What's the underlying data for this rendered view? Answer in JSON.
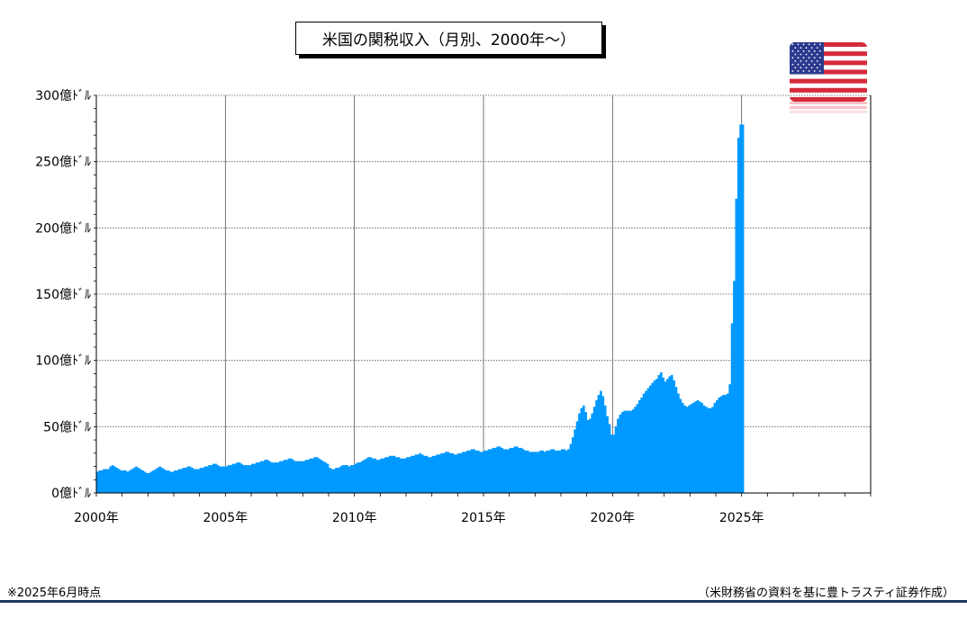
{
  "header": {
    "title": "米国の関税収入（月別、2000年～）"
  },
  "footer": {
    "note": "※2025年6月時点",
    "source": "（米財務省の資料を基に豊トラスティ証券作成）"
  },
  "colors": {
    "bar": "#0099ff",
    "grid": "#555555",
    "rule": "#1f3864"
  },
  "icons": {
    "flag": "us-flag-icon"
  },
  "chart_data": {
    "type": "bar",
    "title": "米国の関税収入（月別、2000年～）",
    "unit": "億ﾄﾞﾙ",
    "ylim": [
      0,
      300
    ],
    "xlim": [
      2000,
      2030
    ],
    "grid": true,
    "yticks": [
      {
        "v": 0,
        "label": "0億ﾄﾞﾙ"
      },
      {
        "v": 50,
        "label": "50億ﾄﾞﾙ"
      },
      {
        "v": 100,
        "label": "100億ﾄﾞﾙ"
      },
      {
        "v": 150,
        "label": "150億ﾄﾞﾙ"
      },
      {
        "v": 200,
        "label": "200億ﾄﾞﾙ"
      },
      {
        "v": 250,
        "label": "250億ﾄﾞﾙ"
      },
      {
        "v": 300,
        "label": "300億ﾄﾞﾙ"
      }
    ],
    "xticks": [
      {
        "v": 2000,
        "label": "2000年"
      },
      {
        "v": 2005,
        "label": "2005年"
      },
      {
        "v": 2010,
        "label": "2010年"
      },
      {
        "v": 2015,
        "label": "2015年"
      },
      {
        "v": 2020,
        "label": "2020年"
      },
      {
        "v": 2025,
        "label": "2025年"
      }
    ],
    "series": [
      {
        "values": [
          16,
          17,
          17,
          18,
          18,
          18,
          20,
          21,
          20,
          19,
          18,
          17,
          17,
          17,
          16,
          17,
          18,
          19,
          20,
          19,
          18,
          17,
          16,
          15,
          15,
          16,
          17,
          18,
          19,
          20,
          19,
          18,
          17,
          17,
          16,
          16,
          17,
          17,
          18,
          18,
          19,
          19,
          20,
          20,
          19,
          18,
          18,
          18,
          19,
          19,
          20,
          20,
          21,
          21,
          22,
          22,
          21,
          20,
          20,
          20,
          20,
          21,
          21,
          22,
          22,
          23,
          23,
          22,
          21,
          21,
          21,
          21,
          22,
          22,
          23,
          23,
          24,
          24,
          25,
          25,
          24,
          23,
          23,
          23,
          23,
          24,
          24,
          25,
          25,
          26,
          26,
          25,
          24,
          24,
          24,
          24,
          24,
          25,
          25,
          26,
          26,
          27,
          27,
          26,
          25,
          24,
          23,
          22,
          19,
          18,
          18,
          19,
          19,
          20,
          21,
          21,
          21,
          20,
          21,
          21,
          22,
          23,
          23,
          24,
          25,
          26,
          27,
          27,
          26,
          26,
          25,
          25,
          26,
          26,
          27,
          27,
          28,
          28,
          28,
          27,
          27,
          26,
          26,
          26,
          27,
          27,
          28,
          28,
          29,
          29,
          30,
          29,
          28,
          28,
          27,
          27,
          28,
          28,
          29,
          29,
          30,
          30,
          31,
          31,
          30,
          30,
          29,
          29,
          30,
          30,
          31,
          31,
          32,
          32,
          33,
          33,
          32,
          32,
          31,
          31,
          32,
          32,
          33,
          33,
          34,
          34,
          35,
          35,
          34,
          33,
          33,
          33,
          34,
          34,
          35,
          35,
          34,
          34,
          33,
          32,
          32,
          31,
          31,
          31,
          31,
          31,
          32,
          32,
          31,
          32,
          32,
          33,
          33,
          32,
          32,
          32,
          33,
          33,
          32,
          33,
          37,
          42,
          48,
          54,
          60,
          64,
          66,
          61,
          55,
          56,
          60,
          65,
          70,
          74,
          77,
          73,
          66,
          58,
          52,
          44,
          44,
          50,
          56,
          59,
          61,
          62,
          62,
          62,
          62,
          63,
          65,
          67,
          70,
          72,
          75,
          77,
          79,
          81,
          83,
          85,
          86,
          89,
          91,
          87,
          84,
          86,
          88,
          89,
          85,
          80,
          75,
          71,
          68,
          66,
          65,
          66,
          67,
          68,
          69,
          70,
          69,
          68,
          66,
          65,
          64,
          64,
          65,
          68,
          70,
          72,
          73,
          74,
          74,
          75,
          82,
          128,
          160,
          222,
          268,
          278,
          278
        ]
      }
    ]
  }
}
